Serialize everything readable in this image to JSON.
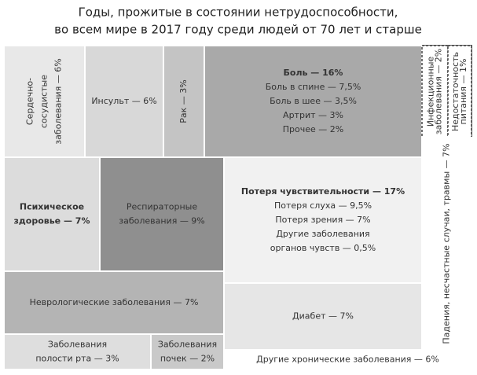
{
  "chart_data": {
    "type": "treemap",
    "title": [
      "Годы, прожитые в состоянии нетрудоспособности,",
      "во всем мире в 2017 году среди людей от 70 лет и старше"
    ],
    "tiles": [
      {
        "label": [
          "Сердечно-",
          "сосудистые",
          "заболевания — 6%"
        ],
        "value": 6,
        "color": "#e8e8e8"
      },
      {
        "label": [
          "Инсульт — 6%"
        ],
        "value": 6,
        "color": "#d8d8d8"
      },
      {
        "label": [
          "Рак — 3%"
        ],
        "value": 3,
        "color": "#c4c4c4"
      },
      {
        "label": [
          "Боль — 16%"
        ],
        "value": 16,
        "color": "#a9a9a9",
        "bold": true,
        "details": [
          {
            "label": [
              "Боль в спине — 7,5%"
            ],
            "value": 7.5
          },
          {
            "label": [
              "Боль в шее — 3,5%"
            ],
            "value": 3.5
          },
          {
            "label": [
              "Артрит — 3%"
            ],
            "value": 3
          },
          {
            "label": [
              "Прочее — 2%"
            ],
            "value": 2
          }
        ]
      },
      {
        "label": [
          "Инфекционные",
          "заболевания — 2%"
        ],
        "value": 2,
        "color": "#ffffff"
      },
      {
        "label": [
          "Недостаточность",
          "питания — 1%"
        ],
        "value": 1,
        "color": "#ffffff"
      },
      {
        "label": [
          "Падения, несчастные случаи, травмы — 7%"
        ],
        "value": 7,
        "color": "#ffffff"
      },
      {
        "label": [
          "Психическое",
          "здоровье — 7%"
        ],
        "value": 7,
        "color": "#dcdcdc",
        "bold": true
      },
      {
        "label": [
          "Респираторные",
          "заболевания — 9%"
        ],
        "value": 9,
        "color": "#8f8f8f"
      },
      {
        "label": [
          "Потеря чувствительности — 17%"
        ],
        "value": 17,
        "color": "#f1f1f1",
        "bold": true,
        "details": [
          {
            "label": [
              "Потеря слуха — 9,5%"
            ],
            "value": 9.5
          },
          {
            "label": [
              "Потеря зрения — 7%"
            ],
            "value": 7
          },
          {
            "label": [
              "Другие заболевания",
              "органов чувств — 0,5%"
            ],
            "value": 0.5
          }
        ]
      },
      {
        "label": [
          "Неврологические заболевания — 7%"
        ],
        "value": 7,
        "color": "#b4b4b4"
      },
      {
        "label": [
          "Диабет — 7%"
        ],
        "value": 7,
        "color": "#e6e6e6"
      },
      {
        "label": [
          "Заболевания",
          "полости рта — 3%"
        ],
        "value": 3,
        "color": "#dedede"
      },
      {
        "label": [
          "Заболевания",
          "почек — 2%"
        ],
        "value": 2,
        "color": "#c9c9c9"
      },
      {
        "label": [
          "Другие хронические заболевания — 6%"
        ],
        "value": 6,
        "color": "#ffffff"
      }
    ]
  }
}
